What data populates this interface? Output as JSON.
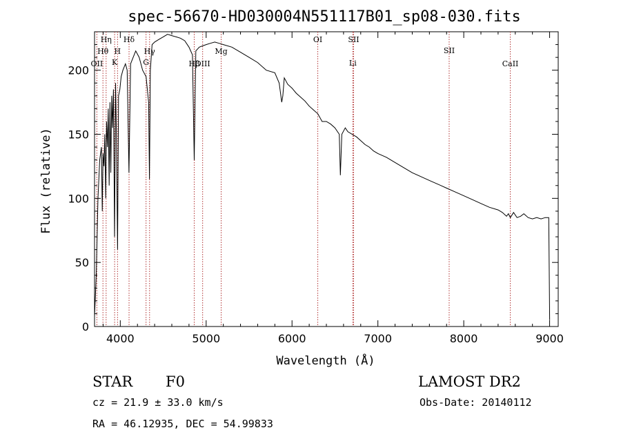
{
  "chart_data": {
    "type": "line",
    "title": "spec-56670-HD030004N551117B01_sp08-030.fits",
    "xlabel": "Wavelength (Å)",
    "ylabel": "Flux (relative)",
    "xlim": [
      3700,
      9100
    ],
    "ylim": [
      0,
      230
    ],
    "xticks": [
      4000,
      5000,
      6000,
      7000,
      8000,
      9000
    ],
    "yticks": [
      0,
      50,
      100,
      150,
      200
    ],
    "grid": false,
    "series": [
      {
        "x": [
          3700,
          3720,
          3740,
          3760,
          3780,
          3790,
          3800,
          3810,
          3820,
          3830,
          3840,
          3850,
          3860,
          3870,
          3880,
          3890,
          3900,
          3910,
          3920,
          3933,
          3945,
          3955,
          3968,
          3980,
          3995,
          4010,
          4030,
          4060,
          4080,
          4101,
          4120,
          4150,
          4180,
          4220,
          4260,
          4300,
          4330,
          4340,
          4350,
          4370,
          4400,
          4450,
          4500,
          4550,
          4600,
          4650,
          4700,
          4750,
          4800,
          4840,
          4861,
          4880,
          4920,
          4960,
          5000,
          5050,
          5100,
          5150,
          5200,
          5300,
          5400,
          5500,
          5600,
          5700,
          5800,
          5850,
          5880,
          5893,
          5910,
          5950,
          6000,
          6050,
          6100,
          6150,
          6200,
          6250,
          6300,
          6350,
          6400,
          6450,
          6500,
          6550,
          6563,
          6580,
          6620,
          6650,
          6700,
          6750,
          6800,
          6850,
          6900,
          6950,
          7000,
          7100,
          7200,
          7300,
          7400,
          7500,
          7600,
          7700,
          7800,
          7900,
          8000,
          8100,
          8200,
          8300,
          8400,
          8450,
          8498,
          8520,
          8542,
          8580,
          8620,
          8662,
          8700,
          8750,
          8800,
          8850,
          8900,
          8950,
          8990,
          9000
        ],
        "y": [
          8,
          40,
          100,
          130,
          140,
          90,
          135,
          125,
          150,
          100,
          160,
          140,
          170,
          110,
          175,
          120,
          180,
          155,
          185,
          70,
          190,
          150,
          60,
          180,
          185,
          195,
          200,
          205,
          200,
          120,
          205,
          210,
          215,
          210,
          200,
          195,
          175,
          115,
          200,
          220,
          222,
          224,
          226,
          228,
          227,
          226,
          225,
          223,
          218,
          212,
          130,
          215,
          218,
          219,
          220,
          221,
          222,
          221,
          220,
          218,
          214,
          210,
          206,
          200,
          198,
          190,
          175,
          180,
          194,
          189,
          186,
          182,
          179,
          176,
          172,
          169,
          166,
          160,
          160,
          158,
          155,
          150,
          118,
          150,
          155,
          152,
          150,
          148,
          145,
          142,
          140,
          137,
          135,
          132,
          128,
          124,
          120,
          117,
          114,
          111,
          108,
          105,
          102,
          99,
          96,
          93,
          91,
          89,
          86,
          88,
          85,
          89,
          85,
          86,
          88,
          85,
          84,
          85,
          84,
          85,
          85,
          5
        ]
      }
    ],
    "line_markers": [
      {
        "label": "OII",
        "wavelength": 3727
      },
      {
        "label": "Hθ",
        "wavelength": 3798
      },
      {
        "label": "Hη",
        "wavelength": 3835
      },
      {
        "label": "K",
        "wavelength": 3934
      },
      {
        "label": "H",
        "wavelength": 3968
      },
      {
        "label": "Hδ",
        "wavelength": 4102
      },
      {
        "label": "G",
        "wavelength": 4300
      },
      {
        "label": "Hγ",
        "wavelength": 4341
      },
      {
        "label": "Hβ",
        "wavelength": 4861
      },
      {
        "label": "OIII",
        "wavelength": 4959
      },
      {
        "label": "Mg",
        "wavelength": 5175
      },
      {
        "label": "OI",
        "wavelength": 6300
      },
      {
        "label": "SII",
        "wavelength": 6717
      },
      {
        "label": "Li",
        "wavelength": 6708
      },
      {
        "label": "SII",
        "wavelength": 7830
      },
      {
        "label": "CaII",
        "wavelength": 8542
      }
    ]
  },
  "info": {
    "object_type": "STAR",
    "subclass": "F0",
    "survey": "LAMOST DR2",
    "redshift": "cz = 21.9 ± 33.0 km/s",
    "obs_date": "Obs-Date: 20140112",
    "coords": "RA =  46.12935, DEC =  54.99833"
  }
}
